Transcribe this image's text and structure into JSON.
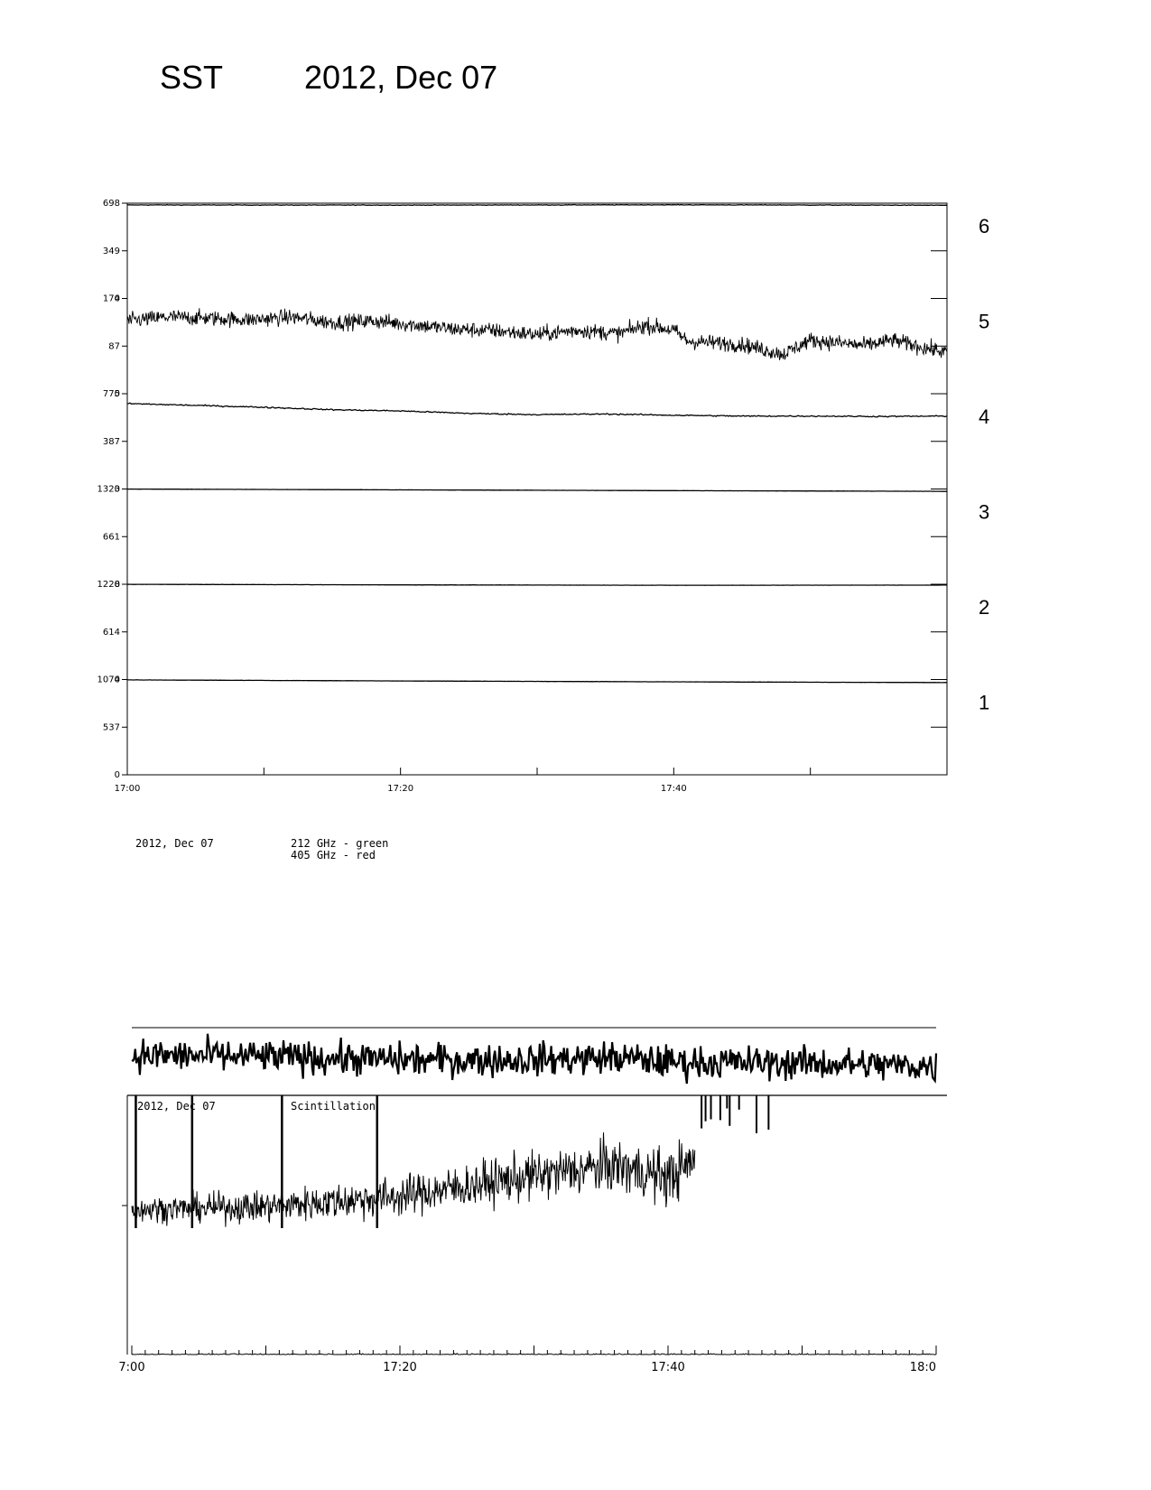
{
  "header": {
    "instrument": "SST",
    "date": "2012, Dec 07"
  },
  "colors": {
    "ink": "#000000",
    "background": "#ffffff"
  },
  "chart_data": [
    {
      "type": "line",
      "name": "stacked-channel-time-series",
      "x_tick_labels": [
        "17:00",
        "17:20",
        "17:40"
      ],
      "xlim": [
        "17:00",
        "18:00"
      ],
      "channels": [
        {
          "label": "6",
          "ylim": [
            0,
            698
          ],
          "tick_labels": [
            "698",
            "349",
            "0"
          ],
          "x": [
            "17:00",
            "17:20",
            "17:40",
            "18:00"
          ],
          "values": [
            685,
            684,
            686,
            683
          ],
          "noise": 2
        },
        {
          "label": "5",
          "ylim": [
            0,
            174
          ],
          "tick_labels": [
            "174",
            "87",
            "0"
          ],
          "x": [
            "17:00",
            "17:03",
            "17:06",
            "17:09",
            "17:12",
            "17:15",
            "17:18",
            "17:21",
            "17:24",
            "17:27",
            "17:30",
            "17:33",
            "17:36",
            "17:38",
            "17:40",
            "17:41",
            "17:45",
            "17:48",
            "17:50",
            "17:54",
            "17:56",
            "17:58",
            "18:00"
          ],
          "values": [
            133,
            140,
            138,
            135,
            140,
            130,
            133,
            126,
            118,
            115,
            108,
            116,
            110,
            125,
            116,
            96,
            90,
            72,
            98,
            88,
            98,
            86,
            75
          ],
          "noise": 14
        },
        {
          "label": "4",
          "ylim": [
            0,
            775
          ],
          "tick_labels": [
            "775",
            "387",
            "0"
          ],
          "x": [
            "17:00",
            "17:05",
            "17:10",
            "17:15",
            "17:20",
            "17:25",
            "17:30",
            "17:35",
            "17:40",
            "17:45",
            "17:50",
            "17:55",
            "18:00"
          ],
          "values": [
            695,
            680,
            665,
            645,
            635,
            615,
            605,
            610,
            600,
            593,
            593,
            590,
            593
          ],
          "noise": 5
        },
        {
          "label": "3",
          "ylim": [
            0,
            1323
          ],
          "tick_labels": [
            "1323",
            "661",
            "0"
          ],
          "x": [
            "17:00",
            "17:20",
            "17:40",
            "18:00"
          ],
          "values": [
            1322,
            1311,
            1300,
            1290
          ],
          "noise": 1
        },
        {
          "label": "2",
          "ylim": [
            0,
            1228
          ],
          "tick_labels": [
            "1228",
            "614",
            "0"
          ],
          "x": [
            "17:00",
            "17:20",
            "17:40",
            "18:00"
          ],
          "values": [
            1227,
            1220,
            1215,
            1217
          ],
          "noise": 1
        },
        {
          "label": "1",
          "ylim": [
            0,
            1074
          ],
          "tick_labels": [
            "1074",
            "537",
            "0"
          ],
          "x": [
            "17:00",
            "17:20",
            "17:40",
            "18:00"
          ],
          "values": [
            1070,
            1058,
            1048,
            1040
          ],
          "noise": 1
        }
      ]
    },
    {
      "type": "line",
      "name": "scintillation",
      "date_label": "2012, Dec 07",
      "legend_lines": [
        "212 GHz - green",
        "405 GHz - red"
      ],
      "plot_label": "Scintillation",
      "x_tick_labels": [
        "7:00",
        "17:20",
        "17:40",
        "18:0"
      ],
      "xlim": [
        "17:00",
        "18:00"
      ],
      "series": [
        {
          "x": [
            "17:00",
            "18:00"
          ],
          "values": [
            1.0,
            1.0
          ],
          "noise": 0
        },
        {
          "x": [
            "17:00",
            "17:10",
            "17:20",
            "17:30",
            "17:36",
            "17:40",
            "17:50",
            "18:00"
          ],
          "values": [
            0.76,
            0.75,
            0.72,
            0.72,
            0.74,
            0.7,
            0.69,
            0.66
          ],
          "noise": 0.015
        },
        {
          "x": [
            "17:00",
            "17:10",
            "17:20",
            "17:30",
            "17:36",
            "17:40",
            "17:42"
          ],
          "values": [
            0.22,
            0.24,
            0.31,
            0.45,
            0.52,
            0.44,
            0.55
          ],
          "noise": 0.08,
          "spikes": true
        },
        {
          "x": [
            "17:00",
            "18:00"
          ],
          "values": [
            0.02,
            0.02
          ],
          "noise": 0.008
        }
      ]
    }
  ]
}
